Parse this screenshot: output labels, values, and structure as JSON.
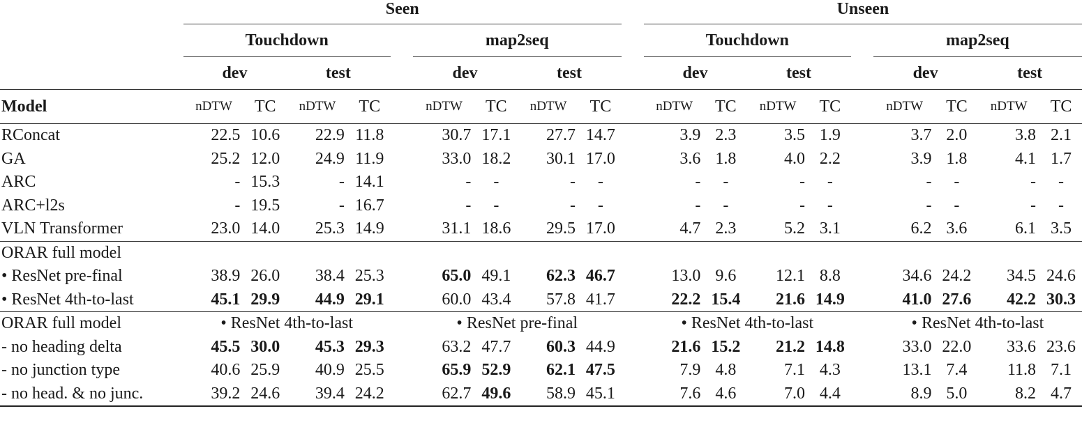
{
  "header": {
    "seen": "Seen",
    "unseen": "Unseen",
    "datasets": [
      "Touchdown",
      "map2seq",
      "Touchdown",
      "map2seq"
    ],
    "splits": [
      "dev",
      "test",
      "dev",
      "test",
      "dev",
      "test",
      "dev",
      "test"
    ],
    "model_label": "Model",
    "metric_ndtw": "nDTW",
    "metric_tc": "TC"
  },
  "groups": [
    {
      "rows": [
        {
          "label": "RConcat",
          "cells": [
            "22.5",
            "10.6",
            "22.9",
            "11.8",
            "30.7",
            "17.1",
            "27.7",
            "14.7",
            "3.9",
            "2.3",
            "3.5",
            "1.9",
            "3.7",
            "2.0",
            "3.8",
            "2.1"
          ],
          "bold": []
        },
        {
          "label": "GA",
          "cells": [
            "25.2",
            "12.0",
            "24.9",
            "11.9",
            "33.0",
            "18.2",
            "30.1",
            "17.0",
            "3.6",
            "1.8",
            "4.0",
            "2.2",
            "3.9",
            "1.8",
            "4.1",
            "1.7"
          ],
          "bold": []
        },
        {
          "label": "ARC",
          "cells": [
            "-",
            "15.3",
            "-",
            "14.1",
            "-",
            "-",
            "-",
            "-",
            "-",
            "-",
            "-",
            "-",
            "-",
            "-",
            "-",
            "-"
          ],
          "bold": []
        },
        {
          "label": "ARC+l2s",
          "cells": [
            "-",
            "19.5",
            "-",
            "16.7",
            "-",
            "-",
            "-",
            "-",
            "-",
            "-",
            "-",
            "-",
            "-",
            "-",
            "-",
            "-"
          ],
          "bold": []
        },
        {
          "label": "VLN Transformer",
          "cells": [
            "23.0",
            "14.0",
            "25.3",
            "14.9",
            "31.1",
            "18.6",
            "29.5",
            "17.0",
            "4.7",
            "2.3",
            "5.2",
            "3.1",
            "6.2",
            "3.6",
            "6.1",
            "3.5"
          ],
          "bold": []
        }
      ]
    },
    {
      "title": "ORAR full model",
      "rows": [
        {
          "label": "• ResNet pre-final",
          "cells": [
            "38.9",
            "26.0",
            "38.4",
            "25.3",
            "65.0",
            "49.1",
            "62.3",
            "46.7",
            "13.0",
            "9.6",
            "12.1",
            "8.8",
            "34.6",
            "24.2",
            "34.5",
            "24.6"
          ],
          "bold": [
            4,
            6,
            7
          ]
        },
        {
          "label": "• ResNet 4th-to-last",
          "cells": [
            "45.1",
            "29.9",
            "44.9",
            "29.1",
            "60.0",
            "43.4",
            "57.8",
            "41.7",
            "22.2",
            "15.4",
            "21.6",
            "14.9",
            "41.0",
            "27.6",
            "42.2",
            "30.3"
          ],
          "bold": [
            0,
            1,
            2,
            3,
            8,
            9,
            10,
            11,
            12,
            13,
            14,
            15
          ]
        }
      ]
    },
    {
      "title": "ORAR full model",
      "subheaders": [
        "• ResNet 4th-to-last",
        "• ResNet pre-final",
        "• ResNet 4th-to-last",
        "• ResNet 4th-to-last"
      ],
      "rows": [
        {
          "label": "- no heading delta",
          "cells": [
            "45.5",
            "30.0",
            "45.3",
            "29.3",
            "63.2",
            "47.7",
            "60.3",
            "44.9",
            "21.6",
            "15.2",
            "21.2",
            "14.8",
            "33.0",
            "22.0",
            "33.6",
            "23.6"
          ],
          "bold": [
            0,
            1,
            2,
            3,
            6,
            8,
            9,
            10,
            11
          ]
        },
        {
          "label": "- no junction type",
          "cells": [
            "40.6",
            "25.9",
            "40.9",
            "25.5",
            "65.9",
            "52.9",
            "62.1",
            "47.5",
            "7.9",
            "4.8",
            "7.1",
            "4.3",
            "13.1",
            "7.4",
            "11.8",
            "7.1"
          ],
          "bold": [
            4,
            5,
            6,
            7
          ]
        },
        {
          "label": "- no head. & no junc.",
          "cells": [
            "39.2",
            "24.6",
            "39.4",
            "24.2",
            "62.7",
            "49.6",
            "58.9",
            "45.1",
            "7.6",
            "4.6",
            "7.0",
            "4.4",
            "8.9",
            "5.0",
            "8.2",
            "4.7"
          ],
          "bold": [
            5
          ]
        }
      ]
    }
  ]
}
